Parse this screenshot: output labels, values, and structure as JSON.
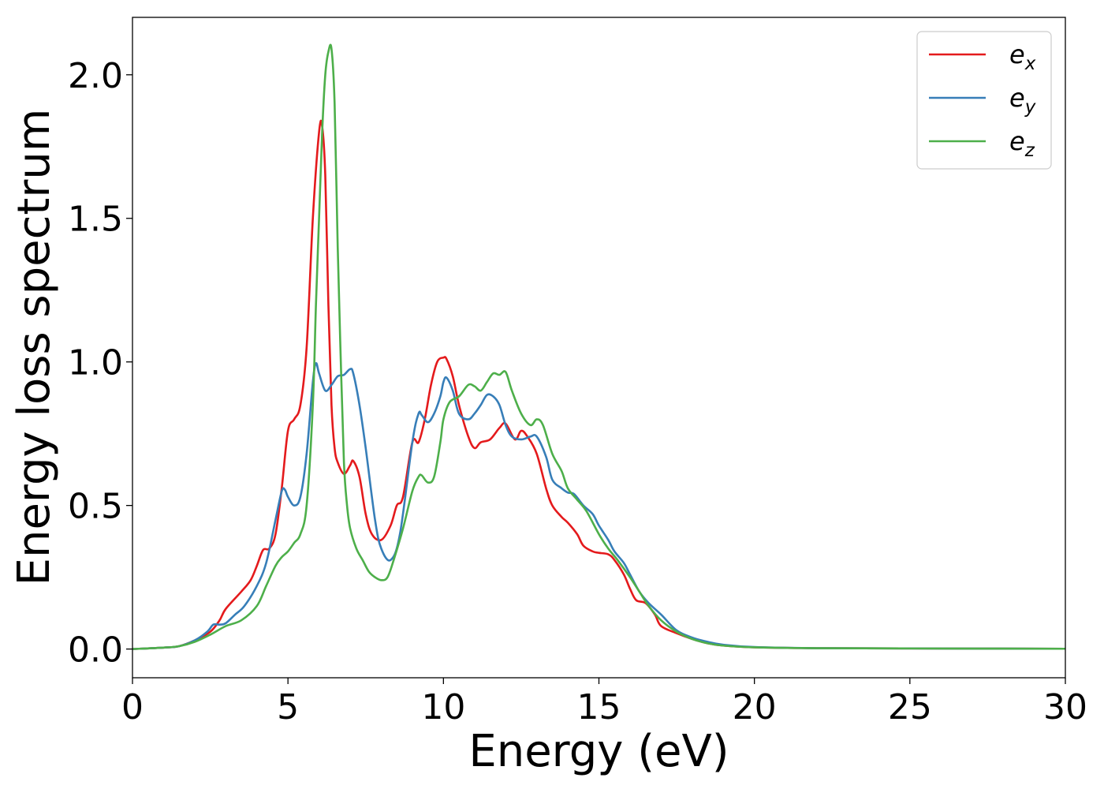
{
  "chart_data": {
    "type": "line",
    "title": "",
    "xlabel": "Energy (eV)",
    "ylabel": "Energy loss spectrum",
    "xlim": [
      0,
      30
    ],
    "ylim": [
      -0.1,
      2.2
    ],
    "xticks": [
      0,
      5,
      10,
      15,
      20,
      25,
      30
    ],
    "yticks": [
      0.0,
      0.5,
      1.0,
      1.5,
      2.0
    ],
    "xtick_labels": [
      "0",
      "5",
      "10",
      "15",
      "20",
      "25",
      "30"
    ],
    "ytick_labels": [
      "0.0",
      "0.5",
      "1.0",
      "1.5",
      "2.0"
    ],
    "grid": false,
    "legend_position": "top-right",
    "series": [
      {
        "name": "e",
        "subscript": "x",
        "color": "#e41a1c",
        "x": [
          0,
          1,
          1.5,
          2,
          2.5,
          2.8,
          3,
          3.5,
          3.8,
          4,
          4.2,
          4.4,
          4.6,
          4.8,
          5,
          5.2,
          5.4,
          5.6,
          5.8,
          6.0,
          6.1,
          6.2,
          6.3,
          6.4,
          6.5,
          6.6,
          6.8,
          7.0,
          7.1,
          7.3,
          7.5,
          7.7,
          8.0,
          8.3,
          8.5,
          8.7,
          9.0,
          9.2,
          9.4,
          9.6,
          9.8,
          10.0,
          10.1,
          10.3,
          10.5,
          10.8,
          11.0,
          11.2,
          11.5,
          11.8,
          12.0,
          12.3,
          12.5,
          12.7,
          13.0,
          13.3,
          13.5,
          13.8,
          14.0,
          14.3,
          14.5,
          14.8,
          15.0,
          15.3,
          15.5,
          15.8,
          16.0,
          16.2,
          16.5,
          16.8,
          17.0,
          17.5,
          18,
          18.5,
          19,
          20,
          22,
          25,
          30
        ],
        "values": [
          0,
          0.005,
          0.01,
          0.03,
          0.06,
          0.1,
          0.14,
          0.2,
          0.24,
          0.29,
          0.345,
          0.35,
          0.4,
          0.56,
          0.76,
          0.8,
          0.85,
          1.05,
          1.5,
          1.8,
          1.82,
          1.65,
          1.2,
          0.85,
          0.7,
          0.65,
          0.61,
          0.64,
          0.655,
          0.6,
          0.47,
          0.4,
          0.38,
          0.43,
          0.5,
          0.53,
          0.72,
          0.72,
          0.8,
          0.92,
          1.0,
          1.015,
          1.01,
          0.95,
          0.85,
          0.74,
          0.7,
          0.72,
          0.73,
          0.77,
          0.785,
          0.73,
          0.76,
          0.74,
          0.68,
          0.56,
          0.5,
          0.46,
          0.44,
          0.4,
          0.36,
          0.34,
          0.335,
          0.33,
          0.31,
          0.26,
          0.21,
          0.17,
          0.16,
          0.12,
          0.08,
          0.055,
          0.035,
          0.02,
          0.012,
          0.006,
          0.003,
          0.002,
          0.001
        ]
      },
      {
        "name": "e",
        "subscript": "y",
        "color": "#377eb8",
        "x": [
          0,
          1,
          1.5,
          2,
          2.4,
          2.6,
          2.8,
          3.0,
          3.3,
          3.6,
          4.0,
          4.3,
          4.6,
          4.8,
          4.9,
          5.0,
          5.2,
          5.4,
          5.6,
          5.8,
          5.9,
          6.0,
          6.2,
          6.4,
          6.6,
          6.8,
          7.0,
          7.1,
          7.3,
          7.5,
          7.8,
          8.0,
          8.3,
          8.6,
          9.0,
          9.2,
          9.3,
          9.5,
          9.7,
          9.9,
          10.0,
          10.1,
          10.3,
          10.5,
          10.8,
          11.0,
          11.2,
          11.4,
          11.6,
          11.8,
          12.0,
          12.2,
          12.5,
          12.8,
          13.0,
          13.3,
          13.5,
          13.8,
          14.0,
          14.2,
          14.5,
          14.8,
          15.0,
          15.3,
          15.5,
          15.8,
          16.0,
          16.3,
          16.6,
          17.0,
          17.5,
          18,
          18.5,
          19,
          20,
          22,
          25,
          30
        ],
        "values": [
          0,
          0.005,
          0.01,
          0.03,
          0.06,
          0.085,
          0.085,
          0.09,
          0.12,
          0.15,
          0.22,
          0.3,
          0.45,
          0.55,
          0.555,
          0.53,
          0.5,
          0.53,
          0.68,
          0.93,
          0.995,
          0.96,
          0.9,
          0.92,
          0.95,
          0.955,
          0.975,
          0.96,
          0.85,
          0.7,
          0.45,
          0.35,
          0.31,
          0.4,
          0.72,
          0.82,
          0.815,
          0.79,
          0.82,
          0.88,
          0.93,
          0.945,
          0.9,
          0.82,
          0.8,
          0.82,
          0.85,
          0.885,
          0.88,
          0.85,
          0.78,
          0.74,
          0.73,
          0.74,
          0.74,
          0.67,
          0.59,
          0.56,
          0.545,
          0.54,
          0.5,
          0.47,
          0.43,
          0.38,
          0.34,
          0.3,
          0.26,
          0.2,
          0.16,
          0.12,
          0.065,
          0.04,
          0.025,
          0.015,
          0.007,
          0.003,
          0.002,
          0.001
        ]
      },
      {
        "name": "e",
        "subscript": "z",
        "color": "#4daf4a",
        "x": [
          0,
          1,
          1.5,
          2,
          2.5,
          3,
          3.5,
          4,
          4.3,
          4.6,
          4.8,
          5.0,
          5.2,
          5.4,
          5.6,
          5.8,
          5.9,
          6.0,
          6.1,
          6.2,
          6.3,
          6.4,
          6.5,
          6.6,
          6.7,
          6.8,
          6.9,
          7.0,
          7.2,
          7.4,
          7.6,
          7.8,
          8.0,
          8.2,
          8.4,
          8.7,
          9.0,
          9.2,
          9.3,
          9.5,
          9.7,
          9.9,
          10.0,
          10.2,
          10.5,
          10.8,
          11.0,
          11.2,
          11.4,
          11.6,
          11.8,
          12.0,
          12.2,
          12.5,
          12.8,
          13.0,
          13.2,
          13.5,
          13.8,
          14.0,
          14.3,
          14.6,
          15.0,
          15.3,
          15.6,
          16.0,
          16.3,
          16.6,
          17.0,
          17.5,
          18,
          18.5,
          19,
          20,
          22,
          25,
          30
        ],
        "values": [
          0,
          0.005,
          0.01,
          0.025,
          0.05,
          0.08,
          0.1,
          0.15,
          0.22,
          0.29,
          0.32,
          0.34,
          0.37,
          0.4,
          0.5,
          0.85,
          1.2,
          1.5,
          1.8,
          2.0,
          2.08,
          2.09,
          1.9,
          1.4,
          1.0,
          0.65,
          0.5,
          0.42,
          0.35,
          0.31,
          0.27,
          0.25,
          0.24,
          0.25,
          0.31,
          0.42,
          0.55,
          0.6,
          0.605,
          0.58,
          0.6,
          0.72,
          0.8,
          0.86,
          0.88,
          0.92,
          0.915,
          0.9,
          0.93,
          0.96,
          0.955,
          0.965,
          0.9,
          0.82,
          0.78,
          0.8,
          0.78,
          0.68,
          0.62,
          0.56,
          0.52,
          0.48,
          0.4,
          0.35,
          0.31,
          0.25,
          0.2,
          0.15,
          0.1,
          0.06,
          0.035,
          0.02,
          0.012,
          0.006,
          0.003,
          0.002,
          0.001
        ]
      }
    ]
  }
}
